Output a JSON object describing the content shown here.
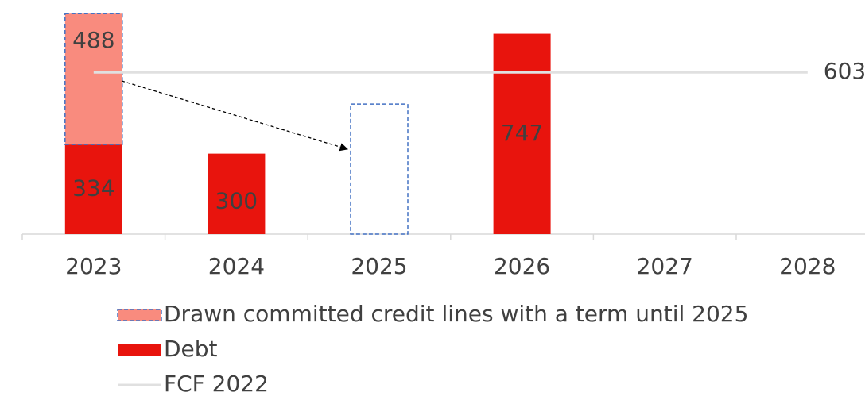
{
  "chart_data": {
    "type": "bar",
    "stacked": true,
    "categories": [
      "2023",
      "2024",
      "2025",
      "2026",
      "2027",
      "2028"
    ],
    "series": [
      {
        "name": "Drawn committed credit lines with a term until 2025",
        "color": "#f98b7e",
        "border_color": "#4472c4",
        "values": [
          488,
          null,
          null,
          null,
          null,
          null
        ]
      },
      {
        "name": "Debt",
        "color": "#e8140d",
        "values": [
          334,
          300,
          null,
          747,
          null,
          null
        ]
      },
      {
        "name": "FCF 2022",
        "type": "line",
        "color": "#e0e0e0",
        "value": 603
      }
    ],
    "ylim": [
      0,
      870
    ]
  }
}
